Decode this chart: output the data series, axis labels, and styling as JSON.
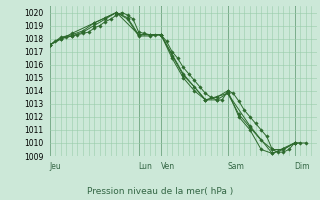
{
  "bg_color": "#cce8d8",
  "grid_color": "#99ccaa",
  "line_color": "#2d6a2d",
  "marker_color": "#2d6a2d",
  "title": "Pression niveau de la mer( hPa )",
  "ylim": [
    1009,
    1020.5
  ],
  "yticks": [
    1009,
    1010,
    1011,
    1012,
    1013,
    1014,
    1015,
    1016,
    1017,
    1018,
    1019,
    1020
  ],
  "day_labels": [
    "Jeu",
    "Lun",
    "Ven",
    "Sam",
    "Dim"
  ],
  "day_positions": [
    0,
    96,
    120,
    192,
    264
  ],
  "total_hours": 288,
  "series": [
    [
      0,
      1017.5,
      6,
      1017.8,
      12,
      1018.0,
      18,
      1018.1,
      24,
      1018.2,
      30,
      1018.3,
      36,
      1018.4,
      42,
      1018.5,
      48,
      1018.8,
      54,
      1019.0,
      60,
      1019.3,
      66,
      1019.5,
      72,
      1019.8,
      78,
      1020.0,
      84,
      1019.8,
      90,
      1019.5,
      96,
      1018.5,
      102,
      1018.4,
      108,
      1018.3,
      114,
      1018.3,
      120,
      1018.3,
      126,
      1017.8,
      132,
      1017.0,
      138,
      1016.5,
      144,
      1015.8,
      150,
      1015.3,
      156,
      1014.8,
      162,
      1014.3,
      168,
      1013.8,
      174,
      1013.5,
      180,
      1013.3,
      186,
      1013.3,
      192,
      1014.0,
      198,
      1013.8,
      204,
      1013.2,
      210,
      1012.5,
      216,
      1012.0,
      222,
      1011.5,
      228,
      1011.0,
      234,
      1010.5,
      240,
      1009.5,
      246,
      1009.3,
      252,
      1009.3,
      258,
      1009.5,
      264,
      1010.0,
      270,
      1010.0
    ],
    [
      0,
      1017.5,
      12,
      1018.0,
      24,
      1018.2,
      36,
      1018.5,
      48,
      1019.0,
      60,
      1019.5,
      72,
      1020.0,
      84,
      1019.6,
      96,
      1018.3,
      108,
      1018.3,
      120,
      1018.3,
      132,
      1016.7,
      144,
      1015.2,
      156,
      1014.3,
      168,
      1013.3,
      180,
      1013.3,
      192,
      1013.8,
      204,
      1012.2,
      216,
      1011.2,
      228,
      1010.2,
      240,
      1009.5,
      252,
      1009.5,
      264,
      1010.0,
      276,
      1010.0
    ],
    [
      0,
      1017.5,
      12,
      1018.1,
      24,
      1018.3,
      36,
      1018.6,
      48,
      1019.2,
      60,
      1019.6,
      72,
      1020.0,
      84,
      1019.5,
      96,
      1018.2,
      108,
      1018.2,
      120,
      1018.3,
      132,
      1016.5,
      144,
      1015.0,
      156,
      1014.0,
      168,
      1013.3,
      180,
      1013.5,
      192,
      1014.0,
      204,
      1012.0,
      216,
      1011.0,
      228,
      1009.5,
      240,
      1009.2,
      252,
      1009.5,
      264,
      1010.0
    ],
    [
      0,
      1017.5,
      24,
      1018.4,
      48,
      1019.2,
      72,
      1020.0,
      96,
      1018.3,
      120,
      1018.3,
      144,
      1015.3,
      168,
      1013.3,
      192,
      1013.8,
      216,
      1011.3,
      240,
      1009.2,
      264,
      1010.0
    ]
  ]
}
